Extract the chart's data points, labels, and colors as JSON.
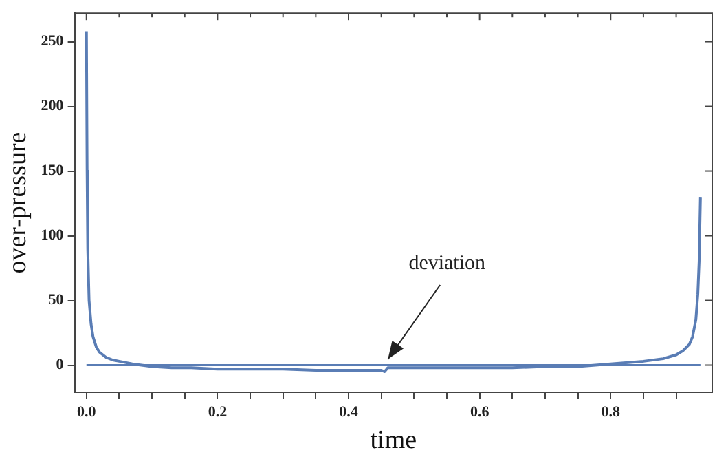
{
  "chart_data": {
    "type": "line",
    "xlabel": "time",
    "ylabel": "over-pressure",
    "x": [
      0,
      0.001,
      0.002,
      0.004,
      0.007,
      0.01,
      0.015,
      0.02,
      0.03,
      0.04,
      0.05,
      0.07,
      0.1,
      0.13,
      0.16,
      0.2,
      0.25,
      0.3,
      0.35,
      0.4,
      0.45,
      0.455,
      0.46,
      0.5,
      0.55,
      0.6,
      0.65,
      0.7,
      0.75,
      0.8,
      0.85,
      0.88,
      0.9,
      0.91,
      0.92,
      0.925,
      0.93,
      0.933,
      0.935,
      0.937
    ],
    "series": [
      {
        "color": "#5a7db5",
        "values": [
          258,
          150,
          90,
          50,
          32,
          22,
          14,
          10,
          6,
          4,
          3,
          1,
          -1,
          -2,
          -2,
          -3,
          -3,
          -3,
          -4,
          -4,
          -4,
          -5,
          -2,
          -2,
          -2,
          -2,
          -2,
          -1,
          -1,
          1,
          3,
          5,
          8,
          11,
          16,
          22,
          35,
          55,
          80,
          130
        ]
      },
      {
        "color": "#5a7db5",
        "x": [
          0,
          0.937
        ],
        "values": [
          0,
          0
        ]
      }
    ],
    "xlim": [
      -0.018,
      0.955
    ],
    "xticks": [
      {
        "value": 0,
        "label": "0.0"
      },
      {
        "value": 0.05,
        "label": null
      },
      {
        "value": 0.1,
        "label": null
      },
      {
        "value": 0.15,
        "label": null
      },
      {
        "value": 0.2,
        "label": "0.2"
      },
      {
        "value": 0.25,
        "label": null
      },
      {
        "value": 0.3,
        "label": null
      },
      {
        "value": 0.35,
        "label": null
      },
      {
        "value": 0.4,
        "label": "0.4"
      },
      {
        "value": 0.45,
        "label": null
      },
      {
        "value": 0.5,
        "label": null
      },
      {
        "value": 0.55,
        "label": null
      },
      {
        "value": 0.6,
        "label": "0.6"
      },
      {
        "value": 0.65,
        "label": null
      },
      {
        "value": 0.7,
        "label": null
      },
      {
        "value": 0.75,
        "label": null
      },
      {
        "value": 0.8,
        "label": "0.8"
      },
      {
        "value": 0.85,
        "label": null
      },
      {
        "value": 0.9,
        "label": null
      }
    ],
    "ylim": [
      -21,
      272
    ],
    "yticks": [
      0,
      50,
      100,
      150,
      200,
      250
    ],
    "annotations": [
      {
        "text": "deviation",
        "x": 0.46,
        "y": -4
      }
    ],
    "grid": false,
    "legend": false,
    "marker": "none",
    "line_style": "solid"
  }
}
